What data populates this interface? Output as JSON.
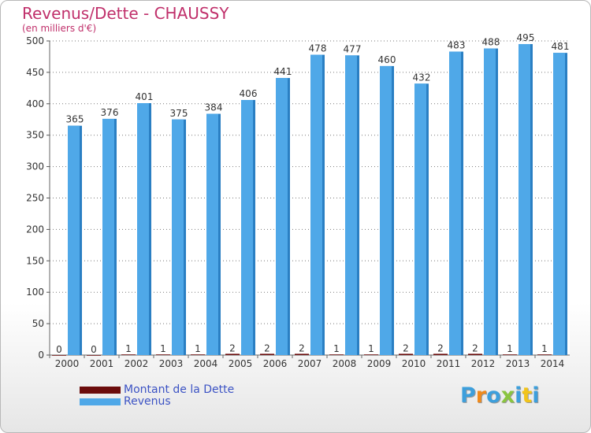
{
  "header": {
    "title": "Revenus/Dette - CHAUSSY",
    "subtitle": "(en milliers d'€)"
  },
  "legend": {
    "items": [
      {
        "label": "Montant de la Dette",
        "color": "#6b0c0c"
      },
      {
        "label": "Revenus",
        "color": "#4fa8e8"
      }
    ]
  },
  "logo": {
    "letters": [
      "P",
      "r",
      "o",
      "x",
      "i",
      "t",
      "i"
    ],
    "colors": [
      "#3d9fdc",
      "#f08a1c",
      "#3d9fdc",
      "#8ac53f",
      "#3d9fdc",
      "#f2c41a",
      "#3d9fdc"
    ]
  },
  "chart_data": {
    "type": "bar",
    "title": "Revenus/Dette - CHAUSSY",
    "subtitle": "(en milliers d'€)",
    "categories": [
      "2000",
      "2001",
      "2002",
      "2003",
      "2004",
      "2005",
      "2006",
      "2007",
      "2008",
      "2009",
      "2010",
      "2011",
      "2012",
      "2013",
      "2014"
    ],
    "series": [
      {
        "name": "Montant de la Dette",
        "color": "#6b0c0c",
        "values": [
          0,
          0,
          1,
          1,
          1,
          2,
          2,
          2,
          1,
          1,
          2,
          2,
          2,
          1,
          1
        ]
      },
      {
        "name": "Revenus",
        "color": "#4fa8e8",
        "values": [
          365,
          376,
          401,
          375,
          384,
          406,
          441,
          478,
          477,
          460,
          432,
          483,
          488,
          495,
          481
        ]
      }
    ],
    "yticks": [
      0,
      50,
      100,
      150,
      200,
      250,
      300,
      350,
      400,
      450,
      500
    ],
    "ylim": [
      0,
      500
    ],
    "grid": true,
    "legend_position": "bottom-left"
  }
}
